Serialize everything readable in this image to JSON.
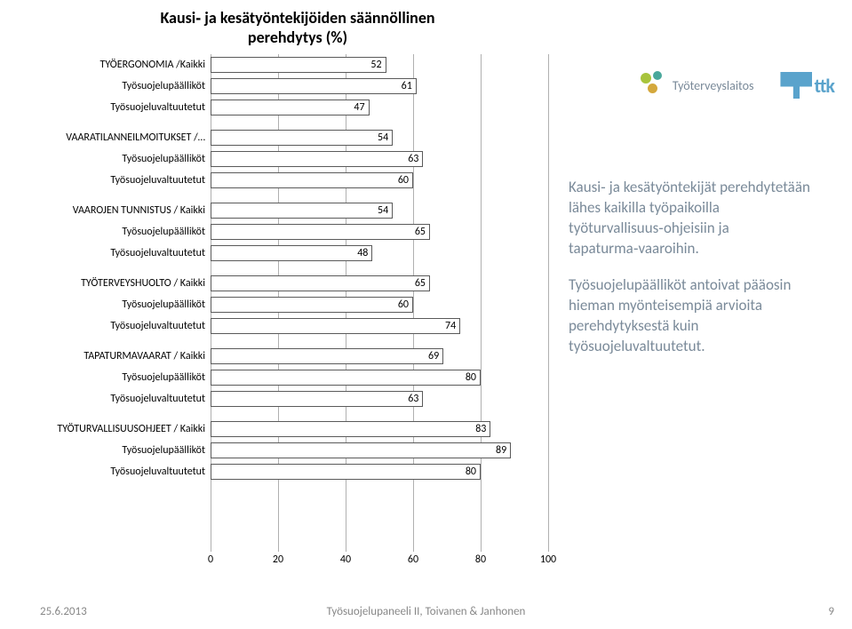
{
  "chart": {
    "type": "bar",
    "title_line1": "Kausi‑ ja kesätyöntekijöiden säännöllinen",
    "title_line2": "perehdytys (%)",
    "title_fontsize": 18,
    "title_color": "#000000",
    "xlim": [
      0,
      100
    ],
    "xtick_step": 20,
    "ticks": [
      0,
      20,
      40,
      60,
      80,
      100
    ],
    "bar_fill": "#ffffff",
    "bar_border": "#5a5a5a",
    "grid_color": "#b0b0b0",
    "background_color": "#ffffff",
    "label_fontsize": 12,
    "value_fontsize": 12,
    "groups": [
      {
        "rows": [
          {
            "label": "TYÖERGONOMIA /Kaikki",
            "value": 52
          },
          {
            "label": "Työsuojelupäälliköt",
            "value": 61
          },
          {
            "label": "Työsuojeluvaltuutetut",
            "value": 47
          }
        ]
      },
      {
        "rows": [
          {
            "label": "VAARATILANNEILMOITUKSET /…",
            "value": 54
          },
          {
            "label": "Työsuojelupäälliköt",
            "value": 63
          },
          {
            "label": "Työsuojeluvaltuutetut",
            "value": 60
          }
        ]
      },
      {
        "rows": [
          {
            "label": "VAAROJEN TUNNISTUS / Kaikki",
            "value": 54
          },
          {
            "label": "Työsuojelupäälliköt",
            "value": 65
          },
          {
            "label": "Työsuojeluvaltuutetut",
            "value": 48
          }
        ]
      },
      {
        "rows": [
          {
            "label": "TYÖTERVEYSHUOLTO / Kaikki",
            "value": 65
          },
          {
            "label": "Työsuojelupäälliköt",
            "value": 60
          },
          {
            "label": "Työsuojeluvaltuutetut",
            "value": 74
          }
        ]
      },
      {
        "rows": [
          {
            "label": "TAPATURMAVAARAT / Kaikki",
            "value": 69
          },
          {
            "label": "Työsuojelupäälliköt",
            "value": 80
          },
          {
            "label": "Työsuojeluvaltuutetut",
            "value": 63
          }
        ]
      },
      {
        "rows": [
          {
            "label": "TYÖTURVALLISUUSOHJEET / Kaikki",
            "value": 83
          },
          {
            "label": "Työsuojelupäälliköt",
            "value": 89
          },
          {
            "label": "Työsuojeluvaltuutetut",
            "value": 80
          }
        ]
      }
    ]
  },
  "side_text": {
    "color": "#7a8a99",
    "fontsize": 17,
    "para1": "Kausi‑ ja kesätyöntekijät perehdytetään lähes kaikilla työpaikoilla työturvallisuus‑ohjeisiin ja tapaturma‑vaaroihin.",
    "para2": "Työsuojelupäälliköt antoivat pääosin hieman myönteisempiä arvioita perehdytyksestä kuin työsuojeluvaltuutetut."
  },
  "logos": {
    "ttl_text": "Työterveyslaitos",
    "ttl_text_color": "#7a8a99",
    "ttl_dot_colors": {
      "green": "#a8c43c",
      "teal": "#4aa89c",
      "gold": "#d4a83c"
    },
    "ttk_text": "ttk",
    "ttk_color": "#5aa3cc"
  },
  "footer": {
    "date": "25.6.2013",
    "center": "Työsuojelupaneeli II, Toivanen & Janhonen",
    "page": "9",
    "color": "#888888",
    "fontsize": 13
  }
}
